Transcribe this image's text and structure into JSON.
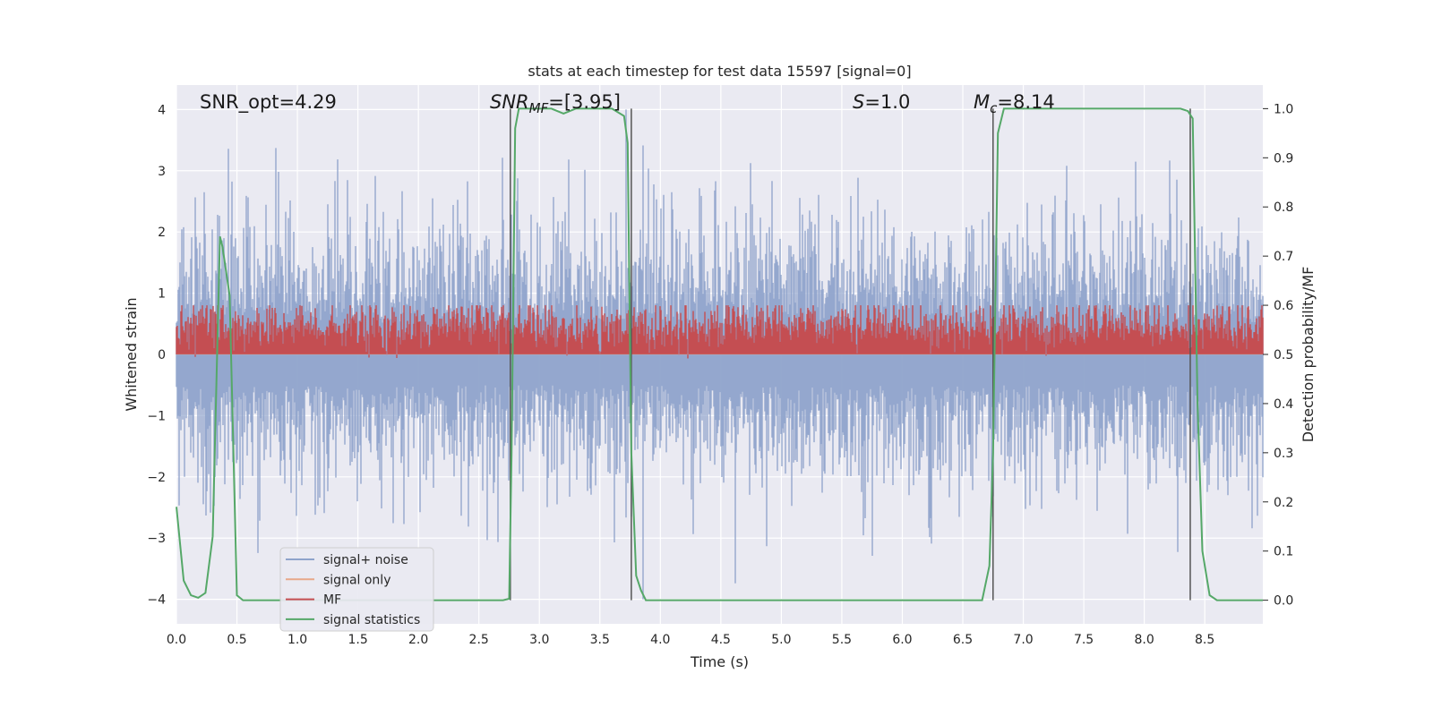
{
  "chart_data": {
    "type": "line",
    "title": "stats at each timestep for test data 15597 [signal=0]",
    "xlabel": "Time (s)",
    "ylabel": "Whitened strain",
    "ylabel_right": "Detection probability/MF",
    "xlim": [
      0.0,
      8.98
    ],
    "ylim": [
      -4.4,
      4.4
    ],
    "ylim_right": [
      -0.048,
      1.048
    ],
    "x_ticks": [
      "0.0",
      "0.5",
      "1.0",
      "1.5",
      "2.0",
      "2.5",
      "3.0",
      "3.5",
      "4.0",
      "4.5",
      "5.0",
      "5.5",
      "6.0",
      "6.5",
      "7.0",
      "7.5",
      "8.0",
      "8.5"
    ],
    "y_ticks": [
      "4",
      "3",
      "2",
      "1",
      "0",
      "−1",
      "−2",
      "−3",
      "−4"
    ],
    "y_ticks_right": [
      "1.0",
      "0.9",
      "0.8",
      "0.7",
      "0.6",
      "0.5",
      "0.4",
      "0.3",
      "0.2",
      "0.1",
      "0.0"
    ],
    "grid": true,
    "legend_position": "lower-left",
    "annotations": {
      "snr_opt": "SNR_opt=4.29",
      "snr_mf": "SNR_MF=[3.95]",
      "s": "S=1.0",
      "mc": "M_c=8.14"
    },
    "series": [
      {
        "name": "signal+ noise",
        "color": "#8fa3cb",
        "kind": "noise",
        "amplitude_range": [
          -4.0,
          4.0
        ]
      },
      {
        "name": "signal only",
        "color": "#e8a889",
        "kind": "flat",
        "values_at_zero": 0
      },
      {
        "name": "MF",
        "color": "#c44e52",
        "kind": "noise",
        "axis": "right",
        "range": [
          0.5,
          0.6
        ]
      },
      {
        "name": "signal statistics",
        "color": "#55a868",
        "axis": "right",
        "x": [
          0.0,
          0.06,
          0.12,
          0.18,
          0.24,
          0.3,
          0.36,
          0.38,
          0.44,
          0.5,
          0.55,
          0.6,
          2.7,
          2.75,
          2.77,
          2.8,
          2.83,
          2.88,
          3.0,
          3.1,
          3.2,
          3.3,
          3.45,
          3.6,
          3.7,
          3.73,
          3.76,
          3.8,
          3.84,
          3.88,
          3.92,
          6.66,
          6.72,
          6.75,
          6.79,
          6.84,
          6.9,
          7.5,
          8.0,
          8.3,
          8.36,
          8.4,
          8.44,
          8.48,
          8.54,
          8.6,
          8.98
        ],
        "y": [
          0.19,
          0.04,
          0.01,
          0.005,
          0.015,
          0.13,
          0.74,
          0.72,
          0.62,
          0.01,
          0.0,
          0.0,
          0.0,
          0.003,
          0.3,
          0.96,
          1.0,
          1.0,
          1.0,
          1.0,
          0.99,
          1.0,
          1.0,
          1.0,
          0.985,
          0.93,
          0.3,
          0.05,
          0.02,
          0.0,
          0.0,
          0.0,
          0.07,
          0.3,
          0.95,
          1.0,
          1.0,
          1.0,
          1.0,
          1.0,
          0.995,
          0.98,
          0.4,
          0.1,
          0.01,
          0.0,
          0.0
        ]
      }
    ],
    "vertical_lines": [
      2.76,
      3.76,
      6.75,
      8.38
    ]
  }
}
